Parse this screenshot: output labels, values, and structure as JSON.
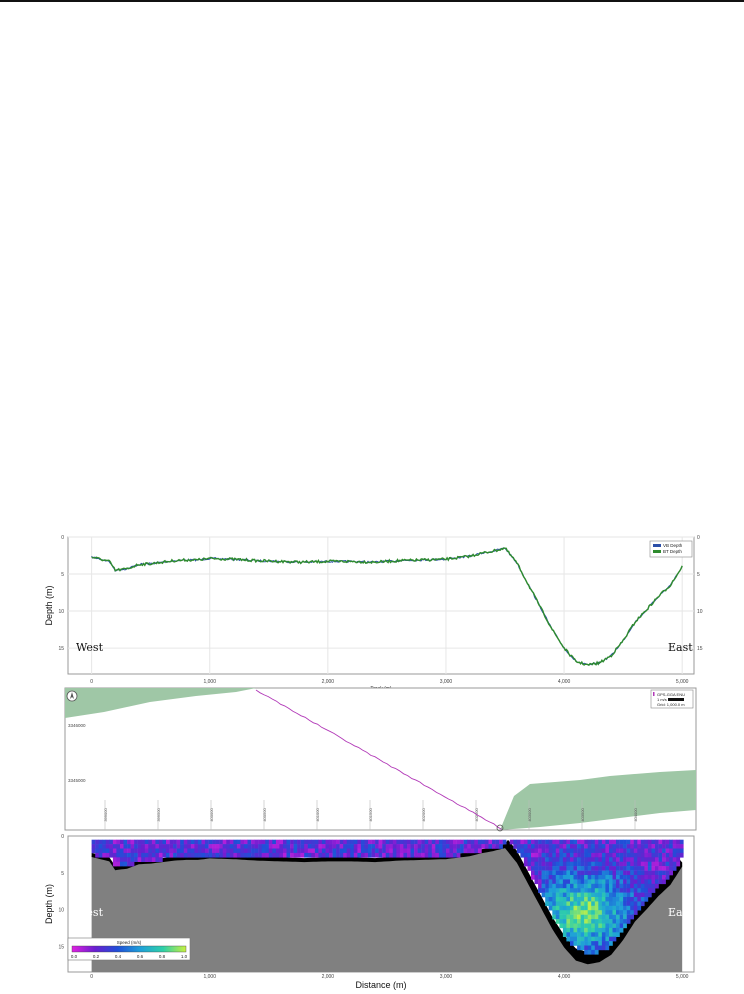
{
  "chart_data": [
    {
      "type": "line",
      "panel": "depth-profile",
      "xlabel": "Track (m)",
      "ylabel": "Depth (m)",
      "xlim": [
        -200,
        5100
      ],
      "ylim": [
        0,
        18.5
      ],
      "y_inverted": true,
      "xticks": [
        0,
        1000,
        2000,
        3000,
        4000,
        5000
      ],
      "xtick_labels": [
        "0",
        "1,000",
        "2,000",
        "3,000",
        "4,000",
        "5,000"
      ],
      "yticks": [
        0,
        5,
        10,
        15
      ],
      "ytick_labels": [
        "0",
        "5",
        "10",
        "15"
      ],
      "grid": true,
      "legend": "top-right",
      "annotations": {
        "left": "West",
        "right": "East"
      },
      "series": [
        {
          "name": "VB Depth",
          "color": "#2c4fa8",
          "x": [
            0,
            150,
            200,
            300,
            400,
            500,
            600,
            700,
            800,
            900,
            1000,
            1200,
            1400,
            1600,
            1800,
            2000,
            2200,
            2400,
            2600,
            2800,
            3000,
            3200,
            3300,
            3400,
            3500,
            3600,
            3700,
            3800,
            3900,
            4000,
            4100,
            4200,
            4300,
            4400,
            4500,
            4600,
            4700,
            4800,
            4900,
            5000
          ],
          "y": [
            2.7,
            3.3,
            4.5,
            4.3,
            3.7,
            3.6,
            3.4,
            3.2,
            3.1,
            3.1,
            2.9,
            3.0,
            3.2,
            3.3,
            3.4,
            3.3,
            3.3,
            3.4,
            3.2,
            3.1,
            3.0,
            2.6,
            2.2,
            1.9,
            1.5,
            3.5,
            6.5,
            9.5,
            12.5,
            15.0,
            16.8,
            17.3,
            17.0,
            16.0,
            14.0,
            11.5,
            9.8,
            8.0,
            6.5,
            4.0
          ]
        },
        {
          "name": "BT Depth",
          "color": "#2e8b2e",
          "x": [
            0,
            150,
            200,
            300,
            400,
            500,
            600,
            700,
            800,
            900,
            1000,
            1200,
            1400,
            1600,
            1800,
            2000,
            2200,
            2400,
            2600,
            2800,
            3000,
            3200,
            3300,
            3400,
            3500,
            3600,
            3700,
            3800,
            3900,
            4000,
            4100,
            4200,
            4300,
            4400,
            4500,
            4600,
            4700,
            4800,
            4900,
            5000
          ],
          "y": [
            2.7,
            3.3,
            4.5,
            4.3,
            3.7,
            3.6,
            3.4,
            3.2,
            3.1,
            3.1,
            2.9,
            3.0,
            3.2,
            3.3,
            3.4,
            3.3,
            3.3,
            3.4,
            3.2,
            3.1,
            3.0,
            2.6,
            2.2,
            1.9,
            1.5,
            3.5,
            6.5,
            9.5,
            12.5,
            15.0,
            16.8,
            17.3,
            17.0,
            16.0,
            14.0,
            11.5,
            9.8,
            8.0,
            6.5,
            4.0
          ]
        }
      ]
    },
    {
      "type": "line",
      "panel": "ship-track-map",
      "ytick_labels": [
        "3346000",
        "3345000"
      ],
      "xtick_labels": [
        "399000",
        "399500",
        "400000",
        "400500",
        "401000",
        "401500",
        "402000",
        "402500",
        "403000",
        "403500",
        "404000",
        "404500"
      ],
      "legend": {
        "series": "GPS-GGA ENU",
        "scale": "1 m/s",
        "grid": "Grid: 1,000.0 m"
      },
      "track_color": "#b23ab8",
      "land_color": "#9fc7a6"
    },
    {
      "type": "heatmap",
      "panel": "velocity-contour",
      "xlabel": "Distance (m)",
      "ylabel": "Depth (m)",
      "xlim": [
        -200,
        5100
      ],
      "ylim": [
        0,
        18.5
      ],
      "y_inverted": true,
      "xticks": [
        0,
        1000,
        2000,
        3000,
        4000,
        5000
      ],
      "xtick_labels": [
        "0",
        "1,000",
        "2,000",
        "3,000",
        "4,000",
        "5,000"
      ],
      "yticks": [
        0,
        5,
        10,
        15
      ],
      "ytick_labels": [
        "0",
        "5",
        "10",
        "15"
      ],
      "annotations": {
        "left": "West",
        "right": "East"
      },
      "colorbar": {
        "label": "Speed (m/s)",
        "ticks": [
          0.0,
          0.2,
          0.4,
          0.6,
          0.8,
          1.0
        ],
        "tick_labels": [
          "0.0",
          "0.2",
          "0.4",
          "0.6",
          "0.8",
          "1.0"
        ],
        "colors": [
          "#e020e0",
          "#6a1fd0",
          "#1f4fd8",
          "#1fa0d8",
          "#2fd0a8",
          "#c8f040"
        ]
      },
      "bed_color": "#808080",
      "blank_color": "#000000"
    }
  ]
}
